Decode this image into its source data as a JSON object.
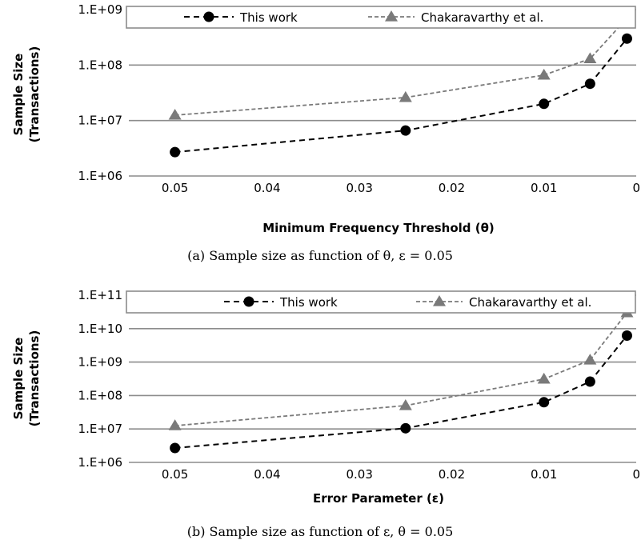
{
  "chart_data": [
    {
      "type": "line",
      "xlabel": "Minimum Frequency Threshold (θ)",
      "ylabel": [
        "Sample Size",
        "(Transactions)"
      ],
      "caption": "(a) Sample size as function of θ, ε = 0.05",
      "y_scale": "log",
      "x_reversed": true,
      "xlim": [
        0,
        0.055
      ],
      "xticks": [
        0.05,
        0.04,
        0.03,
        0.02,
        0.01,
        0
      ],
      "xtick_labels": [
        "0.05",
        "0.04",
        "0.03",
        "0.02",
        "0.01",
        "0"
      ],
      "ylim": [
        1000000,
        1000000000
      ],
      "yticks": [
        1000000,
        10000000,
        100000000,
        1000000000
      ],
      "ytick_labels": [
        "1.E+06",
        "1.E+07",
        "1.E+08",
        "1.E+09"
      ],
      "grid": "horizontal",
      "legend": "top",
      "series": [
        {
          "name": "This work",
          "color": "#000000",
          "marker": "circle",
          "x": [
            0.05,
            0.025,
            0.01,
            0.005,
            0.001
          ],
          "y": [
            2700000,
            6600000,
            20000000,
            46000000,
            300000000
          ]
        },
        {
          "name": "Chakaravarthy et al.",
          "color": "#7a7a7a",
          "marker": "triangle",
          "x": [
            0.05,
            0.025,
            0.01,
            0.005,
            0.001
          ],
          "y": [
            12500000,
            26000000,
            66000000,
            130000000,
            700000000
          ]
        }
      ]
    },
    {
      "type": "line",
      "xlabel": "Error Parameter (ε)",
      "ylabel": [
        "Sample Size",
        "(Transactions)"
      ],
      "caption": "(b) Sample size as function of ε, θ = 0.05",
      "y_scale": "log",
      "x_reversed": true,
      "xlim": [
        0,
        0.055
      ],
      "xticks": [
        0.05,
        0.04,
        0.03,
        0.02,
        0.01,
        0
      ],
      "xtick_labels": [
        "0.05",
        "0.04",
        "0.03",
        "0.02",
        "0.01",
        "0"
      ],
      "ylim": [
        1000000,
        100000000000
      ],
      "yticks": [
        1000000,
        10000000,
        100000000,
        1000000000,
        10000000000,
        100000000000
      ],
      "ytick_labels": [
        "1.E+06",
        "1.E+07",
        "1.E+08",
        "1.E+09",
        "1.E+10",
        "1.E+11"
      ],
      "grid": "horizontal",
      "legend": "top",
      "series": [
        {
          "name": "This work",
          "color": "#000000",
          "marker": "circle",
          "x": [
            0.05,
            0.025,
            0.01,
            0.005,
            0.001
          ],
          "y": [
            2700000,
            10500000,
            63000000,
            260000000,
            6200000000
          ]
        },
        {
          "name": "Chakaravarthy et al.",
          "color": "#7a7a7a",
          "marker": "triangle",
          "x": [
            0.05,
            0.025,
            0.01,
            0.005,
            0.001
          ],
          "y": [
            12500000,
            50000000,
            310000000,
            1150000000,
            30000000000
          ]
        }
      ]
    }
  ]
}
